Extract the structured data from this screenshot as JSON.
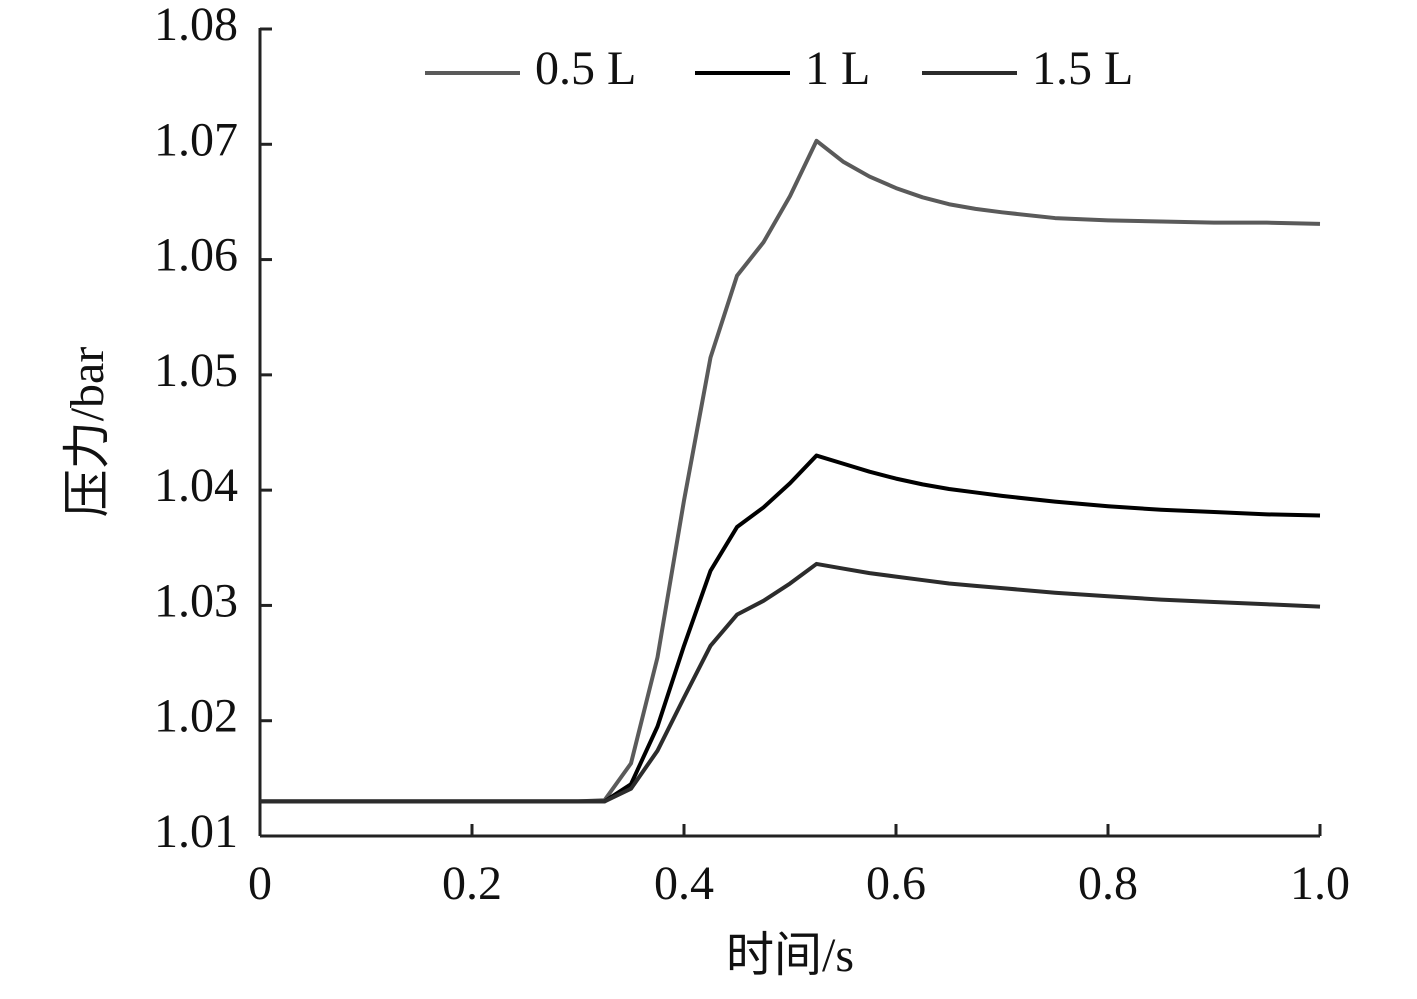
{
  "chart_data": {
    "type": "line",
    "x_label": "时间/s",
    "y_label": "压力/bar",
    "x": [
      0,
      0.3,
      0.325,
      0.35,
      0.375,
      0.4,
      0.425,
      0.45,
      0.475,
      0.5,
      0.525,
      0.55,
      0.575,
      0.6,
      0.625,
      0.65,
      0.675,
      0.7,
      0.75,
      0.8,
      0.85,
      0.9,
      0.95,
      1.0
    ],
    "series": [
      {
        "name": "0.5 L",
        "color": "#5a5a5a",
        "values": [
          1.013,
          1.013,
          1.0131,
          1.0163,
          1.0255,
          1.0391,
          1.0515,
          1.0586,
          1.0615,
          1.0655,
          1.0703,
          1.0685,
          1.0672,
          1.0662,
          1.0654,
          1.0648,
          1.0644,
          1.0641,
          1.0636,
          1.0634,
          1.0633,
          1.0632,
          1.0632,
          1.0631
        ]
      },
      {
        "name": "1 L",
        "color": "#000000",
        "values": [
          1.013,
          1.013,
          1.013,
          1.0145,
          1.0195,
          1.0265,
          1.033,
          1.0368,
          1.0385,
          1.0406,
          1.043,
          1.0423,
          1.0416,
          1.041,
          1.0405,
          1.0401,
          1.0398,
          1.0395,
          1.039,
          1.0386,
          1.0383,
          1.0381,
          1.0379,
          1.0378
        ]
      },
      {
        "name": "1.5 L",
        "color": "#2c2c2c",
        "values": [
          1.013,
          1.013,
          1.013,
          1.0141,
          1.0174,
          1.022,
          1.0265,
          1.0292,
          1.0304,
          1.0319,
          1.0336,
          1.0332,
          1.0328,
          1.0325,
          1.0322,
          1.0319,
          1.0317,
          1.0315,
          1.0311,
          1.0308,
          1.0305,
          1.0303,
          1.0301,
          1.0299
        ]
      }
    ],
    "xlim": [
      0,
      1
    ],
    "xticks": [
      0,
      0.2,
      0.4,
      0.6,
      0.8,
      {
        "value": 1,
        "label": "1.0"
      }
    ],
    "ylim": [
      1.01,
      1.08
    ],
    "yticks": [
      1.01,
      1.02,
      1.03,
      1.04,
      1.05,
      1.06,
      1.07,
      1.08
    ],
    "grid": false
  }
}
